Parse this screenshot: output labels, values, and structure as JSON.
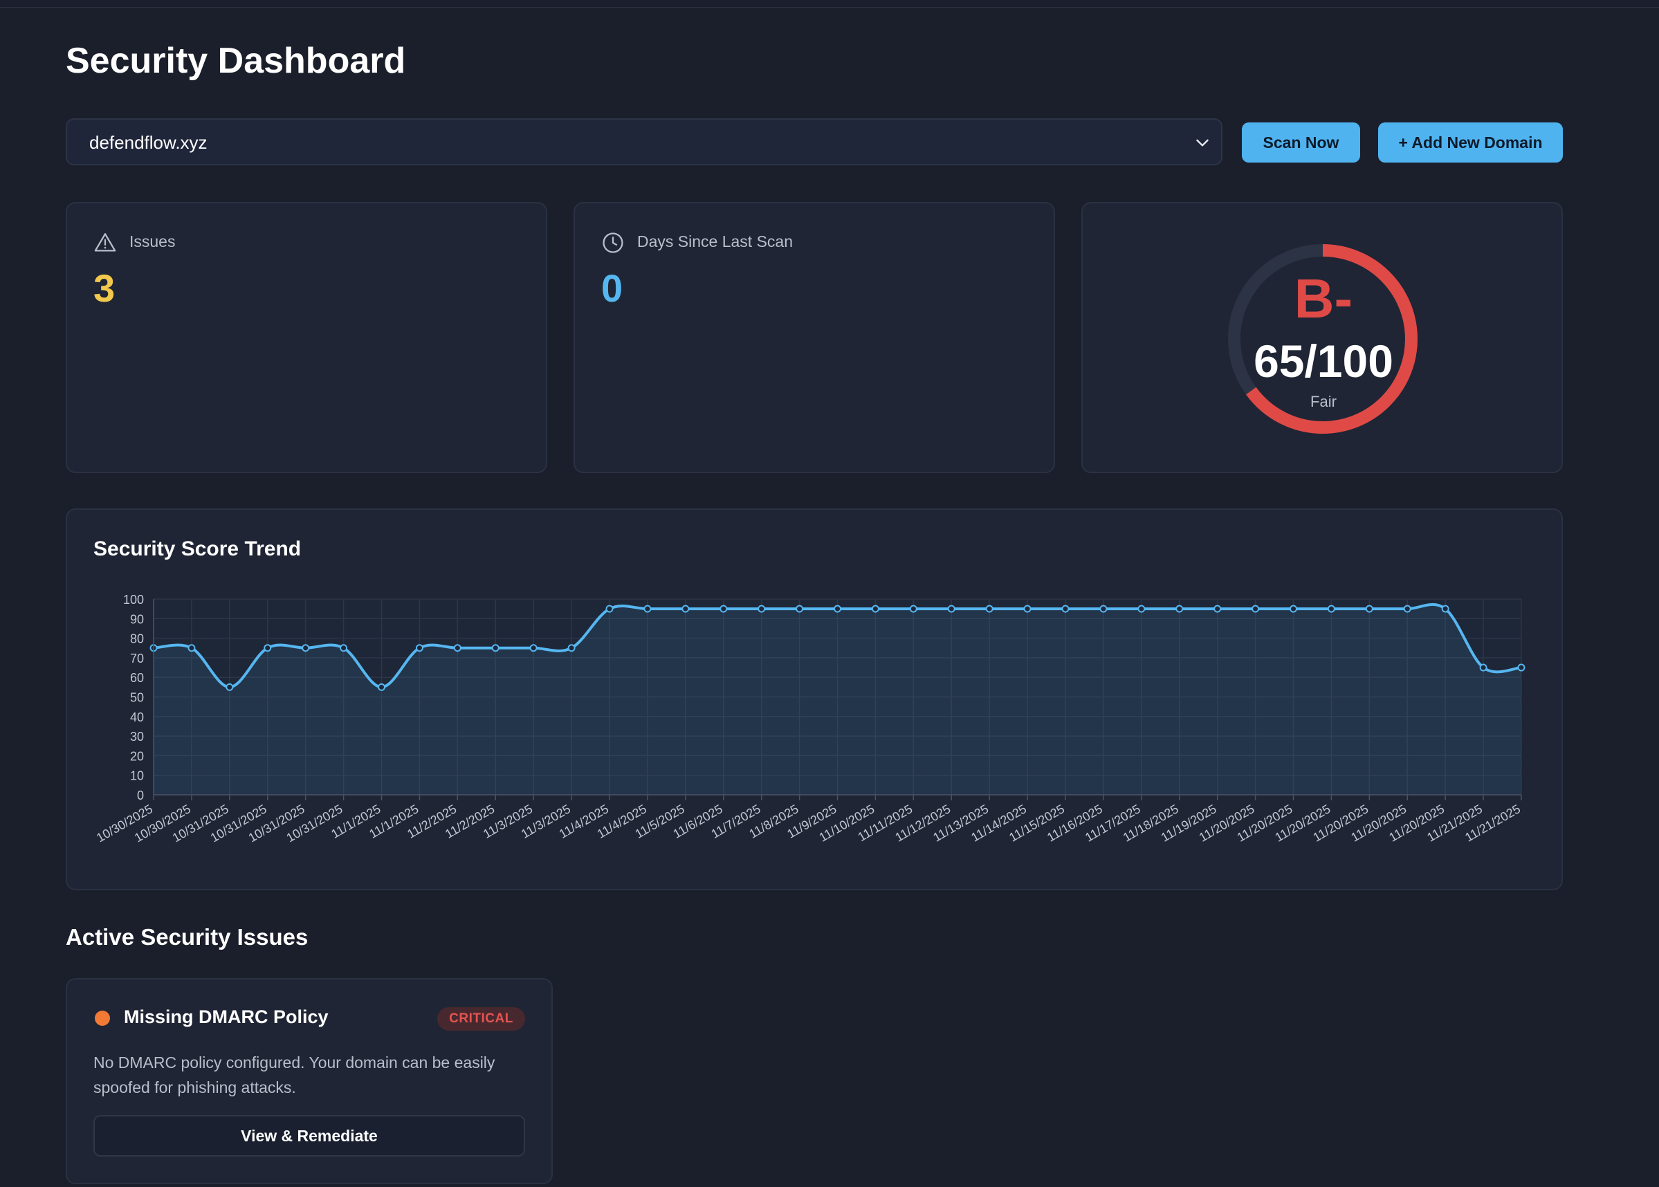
{
  "page": {
    "title": "Security Dashboard"
  },
  "controls": {
    "selected_domain": "defendflow.xyz",
    "scan_label": "Scan Now",
    "add_label": "+ Add New Domain"
  },
  "stats": {
    "issues": {
      "label": "Issues",
      "value": "3",
      "color": "#f2c94c",
      "icon": "warning-triangle-icon"
    },
    "days": {
      "label": "Days Since Last Scan",
      "value": "0",
      "color": "#56b6f0",
      "icon": "clock-icon"
    },
    "score": {
      "grade": "B-",
      "value": "65/100",
      "rating": "Fair",
      "fraction": 0.65,
      "color": "#e04a46"
    }
  },
  "chart": {
    "title": "Security Score Trend"
  },
  "chart_data": {
    "type": "area",
    "title": "Security Score Trend",
    "xlabel": "",
    "ylabel": "",
    "ylim": [
      0,
      100
    ],
    "yticks": [
      0,
      10,
      20,
      30,
      40,
      50,
      60,
      70,
      80,
      90,
      100
    ],
    "grid": true,
    "line_color": "#56b6f0",
    "x": [
      "10/30/2025",
      "10/30/2025",
      "10/31/2025",
      "10/31/2025",
      "10/31/2025",
      "10/31/2025",
      "11/1/2025",
      "11/1/2025",
      "11/2/2025",
      "11/2/2025",
      "11/3/2025",
      "11/3/2025",
      "11/4/2025",
      "11/4/2025",
      "11/5/2025",
      "11/6/2025",
      "11/7/2025",
      "11/8/2025",
      "11/9/2025",
      "11/10/2025",
      "11/11/2025",
      "11/12/2025",
      "11/13/2025",
      "11/14/2025",
      "11/15/2025",
      "11/16/2025",
      "11/17/2025",
      "11/18/2025",
      "11/19/2025",
      "11/20/2025",
      "11/20/2025",
      "11/20/2025",
      "11/20/2025",
      "11/20/2025",
      "11/20/2025",
      "11/21/2025",
      "11/21/2025"
    ],
    "series": [
      {
        "values": [
          75,
          75,
          55,
          75,
          75,
          75,
          55,
          75,
          75,
          75,
          75,
          75,
          95,
          95,
          95,
          95,
          95,
          95,
          95,
          95,
          95,
          95,
          95,
          95,
          95,
          95,
          95,
          95,
          95,
          95,
          95,
          95,
          95,
          95,
          95,
          65,
          65
        ]
      }
    ]
  },
  "issues_section": {
    "title": "Active Security Issues",
    "items": [
      {
        "title": "Missing DMARC Policy",
        "severity": "CRITICAL",
        "description": "No DMARC policy configured. Your domain can be easily spoofed for phishing attacks.",
        "action": "View & Remediate",
        "dot_color": "#f27a35"
      }
    ]
  }
}
